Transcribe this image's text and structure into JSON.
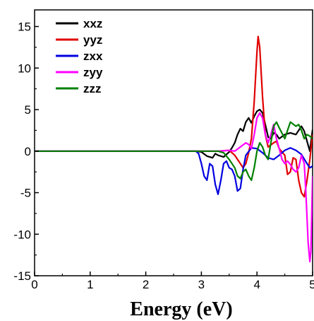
{
  "chart_data": {
    "type": "line",
    "title": "",
    "xlabel": "Energy (eV)",
    "ylabel": "",
    "xlim": [
      0,
      5
    ],
    "ylim": [
      -15,
      17
    ],
    "x_ticks": [
      0,
      1,
      2,
      3,
      4,
      5
    ],
    "y_ticks": [
      -15,
      -10,
      -5,
      0,
      5,
      10,
      15
    ],
    "grid": false,
    "legend_position": "top-left",
    "series": [
      {
        "name": "xxz",
        "color": "#000000",
        "points": [
          [
            0,
            0
          ],
          [
            2.9,
            0
          ],
          [
            3.0,
            -0.1
          ],
          [
            3.1,
            -0.6
          ],
          [
            3.2,
            -0.8
          ],
          [
            3.25,
            -0.3
          ],
          [
            3.3,
            -0.5
          ],
          [
            3.4,
            -0.7
          ],
          [
            3.5,
            -0.1
          ],
          [
            3.55,
            0.4
          ],
          [
            3.6,
            1.0
          ],
          [
            3.65,
            2.0
          ],
          [
            3.7,
            2.7
          ],
          [
            3.75,
            2.4
          ],
          [
            3.8,
            3.5
          ],
          [
            3.85,
            4.0
          ],
          [
            3.9,
            3.4
          ],
          [
            3.95,
            4.2
          ],
          [
            4.0,
            4.8
          ],
          [
            4.05,
            5.0
          ],
          [
            4.1,
            4.6
          ],
          [
            4.15,
            3.2
          ],
          [
            4.2,
            1.7
          ],
          [
            4.25,
            1.5
          ],
          [
            4.3,
            2.2
          ],
          [
            4.35,
            2.0
          ],
          [
            4.4,
            1.5
          ],
          [
            4.5,
            2.0
          ],
          [
            4.6,
            2.2
          ],
          [
            4.7,
            2.0
          ],
          [
            4.8,
            3.0
          ],
          [
            4.85,
            2.4
          ],
          [
            4.9,
            1.2
          ],
          [
            4.95,
            0.0
          ],
          [
            5.0,
            2.6
          ]
        ]
      },
      {
        "name": "yyz",
        "color": "#e00000",
        "points": [
          [
            0,
            0
          ],
          [
            3.3,
            0
          ],
          [
            3.5,
            0.1
          ],
          [
            3.6,
            -0.5
          ],
          [
            3.7,
            -1.5
          ],
          [
            3.75,
            -2.0
          ],
          [
            3.8,
            -1.5
          ],
          [
            3.85,
            -0.2
          ],
          [
            3.9,
            1.5
          ],
          [
            3.95,
            6.0
          ],
          [
            4.0,
            12.0
          ],
          [
            4.02,
            13.8
          ],
          [
            4.05,
            12.5
          ],
          [
            4.1,
            6.5
          ],
          [
            4.15,
            2.0
          ],
          [
            4.2,
            0.5
          ],
          [
            4.3,
            1.0
          ],
          [
            4.35,
            1.2
          ],
          [
            4.4,
            0.3
          ],
          [
            4.5,
            -0.5
          ],
          [
            4.55,
            -2.8
          ],
          [
            4.6,
            -2.5
          ],
          [
            4.65,
            -0.8
          ],
          [
            4.7,
            -1.0
          ],
          [
            4.75,
            -3.5
          ],
          [
            4.8,
            -5.0
          ],
          [
            4.85,
            -5.5
          ],
          [
            4.9,
            -3.5
          ],
          [
            4.95,
            -1.0
          ],
          [
            5.0,
            2.0
          ]
        ]
      },
      {
        "name": "zxx",
        "color": "#0000e0",
        "points": [
          [
            0,
            0
          ],
          [
            2.9,
            0
          ],
          [
            2.95,
            -0.3
          ],
          [
            3.0,
            -1.5
          ],
          [
            3.05,
            -3.0
          ],
          [
            3.1,
            -3.5
          ],
          [
            3.15,
            -1.5
          ],
          [
            3.2,
            -1.8
          ],
          [
            3.25,
            -4.0
          ],
          [
            3.3,
            -5.2
          ],
          [
            3.35,
            -3.5
          ],
          [
            3.4,
            -1.5
          ],
          [
            3.45,
            -1.2
          ],
          [
            3.5,
            -2.0
          ],
          [
            3.55,
            -2.2
          ],
          [
            3.6,
            -3.0
          ],
          [
            3.65,
            -4.8
          ],
          [
            3.7,
            -4.5
          ],
          [
            3.75,
            -2.2
          ],
          [
            3.8,
            -0.5
          ],
          [
            3.9,
            0.4
          ],
          [
            4.0,
            0.3
          ],
          [
            4.1,
            -0.2
          ],
          [
            4.2,
            -0.8
          ],
          [
            4.3,
            -1.0
          ],
          [
            4.4,
            -0.5
          ],
          [
            4.5,
            0.1
          ],
          [
            4.6,
            0.4
          ],
          [
            4.7,
            0.1
          ],
          [
            4.8,
            -0.4
          ],
          [
            4.9,
            -1.5
          ],
          [
            4.95,
            -2.0
          ],
          [
            5.0,
            -1.8
          ]
        ]
      },
      {
        "name": "zyy",
        "color": "#ff00ff",
        "points": [
          [
            0,
            0
          ],
          [
            3.3,
            0
          ],
          [
            3.5,
            0.1
          ],
          [
            3.6,
            0.0
          ],
          [
            3.7,
            0.5
          ],
          [
            3.8,
            1.0
          ],
          [
            3.85,
            0.8
          ],
          [
            3.9,
            0.3
          ],
          [
            3.95,
            2.0
          ],
          [
            4.0,
            4.0
          ],
          [
            4.05,
            4.6
          ],
          [
            4.1,
            4.0
          ],
          [
            4.15,
            2.0
          ],
          [
            4.2,
            1.0
          ],
          [
            4.25,
            2.0
          ],
          [
            4.3,
            3.2
          ],
          [
            4.35,
            1.5
          ],
          [
            4.4,
            0.3
          ],
          [
            4.45,
            -1.0
          ],
          [
            4.5,
            -1.5
          ],
          [
            4.55,
            -1.2
          ],
          [
            4.6,
            -1.6
          ],
          [
            4.65,
            -2.2
          ],
          [
            4.7,
            -2.5
          ],
          [
            4.75,
            -2.0
          ],
          [
            4.8,
            -0.5
          ],
          [
            4.85,
            -1.5
          ],
          [
            4.88,
            -5.0
          ],
          [
            4.92,
            -11.0
          ],
          [
            4.95,
            -13.3
          ],
          [
            4.97,
            -12.0
          ],
          [
            5.0,
            -3.0
          ]
        ]
      },
      {
        "name": "zzz",
        "color": "#008000",
        "points": [
          [
            0,
            0
          ],
          [
            3.3,
            0
          ],
          [
            3.4,
            -0.2
          ],
          [
            3.5,
            -1.0
          ],
          [
            3.6,
            -2.0
          ],
          [
            3.65,
            -3.0
          ],
          [
            3.7,
            -3.3
          ],
          [
            3.75,
            -2.5
          ],
          [
            3.8,
            -2.2
          ],
          [
            3.85,
            -3.0
          ],
          [
            3.9,
            -3.5
          ],
          [
            3.95,
            -2.0
          ],
          [
            4.0,
            0.0
          ],
          [
            4.05,
            1.0
          ],
          [
            4.1,
            0.5
          ],
          [
            4.15,
            -0.5
          ],
          [
            4.2,
            -1.0
          ],
          [
            4.25,
            1.0
          ],
          [
            4.3,
            3.0
          ],
          [
            4.35,
            3.5
          ],
          [
            4.4,
            2.8
          ],
          [
            4.5,
            1.5
          ],
          [
            4.55,
            2.5
          ],
          [
            4.6,
            3.5
          ],
          [
            4.7,
            3.0
          ],
          [
            4.75,
            3.2
          ],
          [
            4.8,
            2.5
          ],
          [
            4.85,
            1.5
          ],
          [
            4.9,
            2.0
          ],
          [
            4.95,
            1.8
          ],
          [
            5.0,
            1.5
          ]
        ]
      }
    ]
  }
}
